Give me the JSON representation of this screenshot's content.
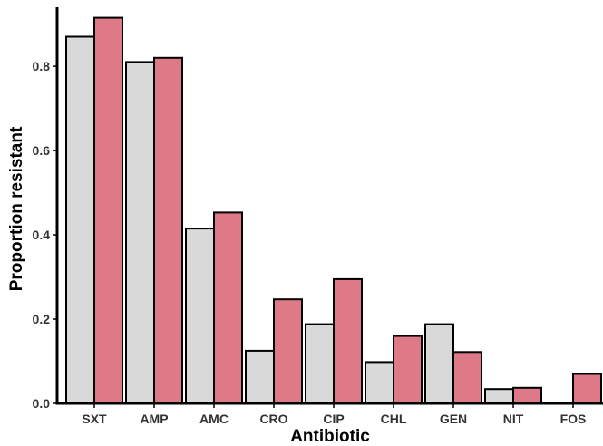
{
  "chart_data": {
    "type": "bar",
    "xlabel": "Antibiotic",
    "ylabel": "Proportion resistant",
    "ylim": [
      0,
      0.94
    ],
    "yticks": [
      0.0,
      0.2,
      0.4,
      0.6,
      0.8
    ],
    "ytick_labels": [
      "0.0",
      "0.2",
      "0.4",
      "0.6",
      "0.8"
    ],
    "grid": false,
    "legend": "none",
    "categories": [
      "SXT",
      "AMP",
      "AMC",
      "CRO",
      "CIP",
      "CHL",
      "GEN",
      "NIT",
      "FOS"
    ],
    "series": [
      {
        "color": "#d9d9d9",
        "values": [
          0.87,
          0.81,
          0.415,
          0.125,
          0.188,
          0.098,
          0.188,
          0.034,
          0.0
        ]
      },
      {
        "color": "#de7a88",
        "values": [
          0.915,
          0.82,
          0.453,
          0.247,
          0.295,
          0.16,
          0.122,
          0.037,
          0.07
        ]
      }
    ]
  }
}
